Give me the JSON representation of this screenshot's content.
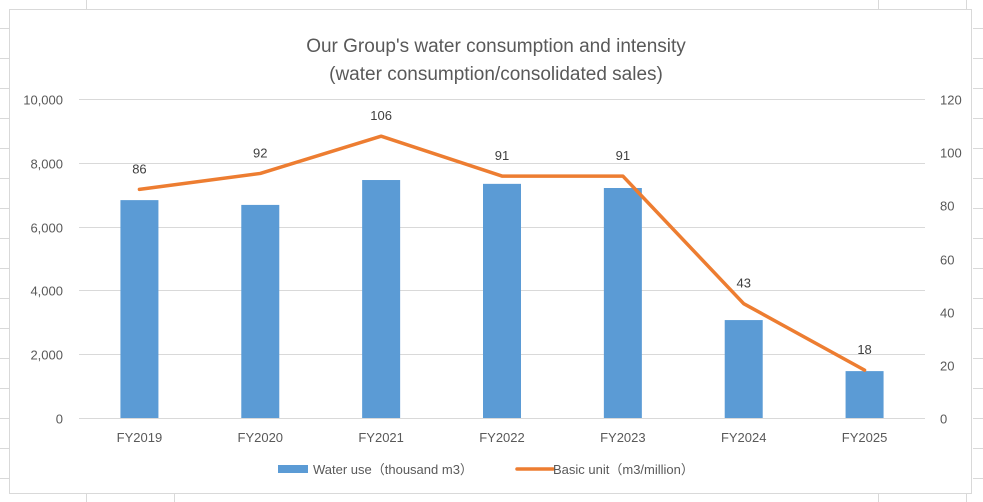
{
  "chart_data": {
    "type": "bar+line",
    "title": "Our Group's water consumption and intensity",
    "subtitle": "(water consumption/consolidated sales)",
    "categories": [
      "FY2019",
      "FY2020",
      "FY2021",
      "FY2022",
      "FY2023",
      "FY2024",
      "FY2025"
    ],
    "series": [
      {
        "name": "Water use（thousand m3）",
        "type": "bar",
        "axis": "left",
        "color": "#5B9BD5",
        "values": [
          6830,
          6680,
          7460,
          7340,
          7210,
          3070,
          1470
        ]
      },
      {
        "name": "Basic unit（m3/million）",
        "type": "line",
        "axis": "right",
        "color": "#ED7D31",
        "values": [
          86,
          92,
          106,
          91,
          91,
          43,
          18
        ],
        "data_labels": [
          "86",
          "92",
          "106",
          "91",
          "91",
          "43",
          "18"
        ]
      }
    ],
    "y_left": {
      "range": [
        0,
        10000
      ],
      "ticks": [
        0,
        2000,
        4000,
        6000,
        8000,
        10000
      ],
      "tick_labels": [
        "0",
        "2,000",
        "4,000",
        "6,000",
        "8,000",
        "10,000"
      ]
    },
    "y_right": {
      "range": [
        0,
        120
      ],
      "ticks": [
        0,
        20,
        40,
        60,
        80,
        100,
        120
      ],
      "tick_labels": [
        "0",
        "20",
        "40",
        "60",
        "80",
        "100",
        "120"
      ]
    },
    "grid": true,
    "legend": "bottom-center",
    "xlabel": "",
    "ylabel": ""
  }
}
